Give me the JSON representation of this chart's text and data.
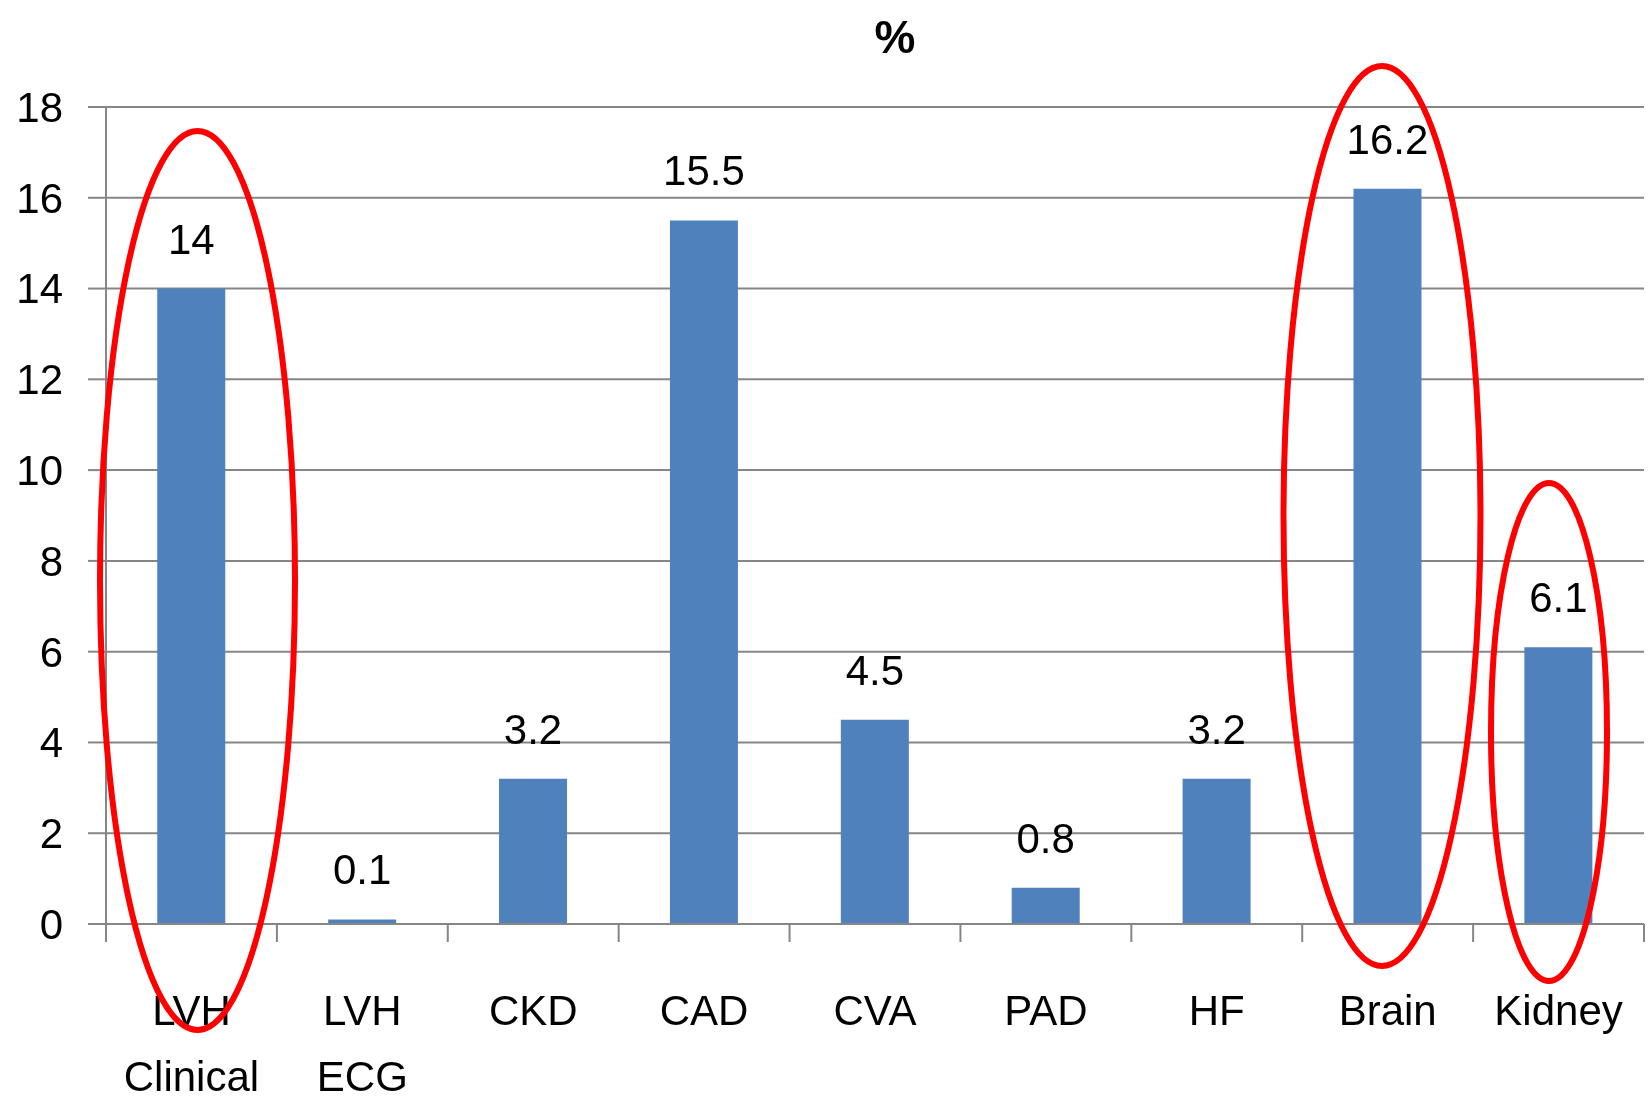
{
  "chart_data": {
    "type": "bar",
    "title": "%",
    "categories": [
      "LVH Clinical",
      "LVH ECG",
      "CKD",
      "CAD",
      "CVA",
      "PAD",
      "HF",
      "Brain",
      "Kidney"
    ],
    "values": [
      14,
      0.1,
      3.2,
      15.5,
      4.5,
      0.8,
      3.2,
      16.2,
      6.1
    ],
    "color": "#4f81bd",
    "ylim": [
      0,
      18
    ],
    "yticks": [
      0,
      2,
      4,
      6,
      8,
      10,
      12,
      14,
      16,
      18
    ],
    "grid": "y",
    "data_labels": true
  }
}
